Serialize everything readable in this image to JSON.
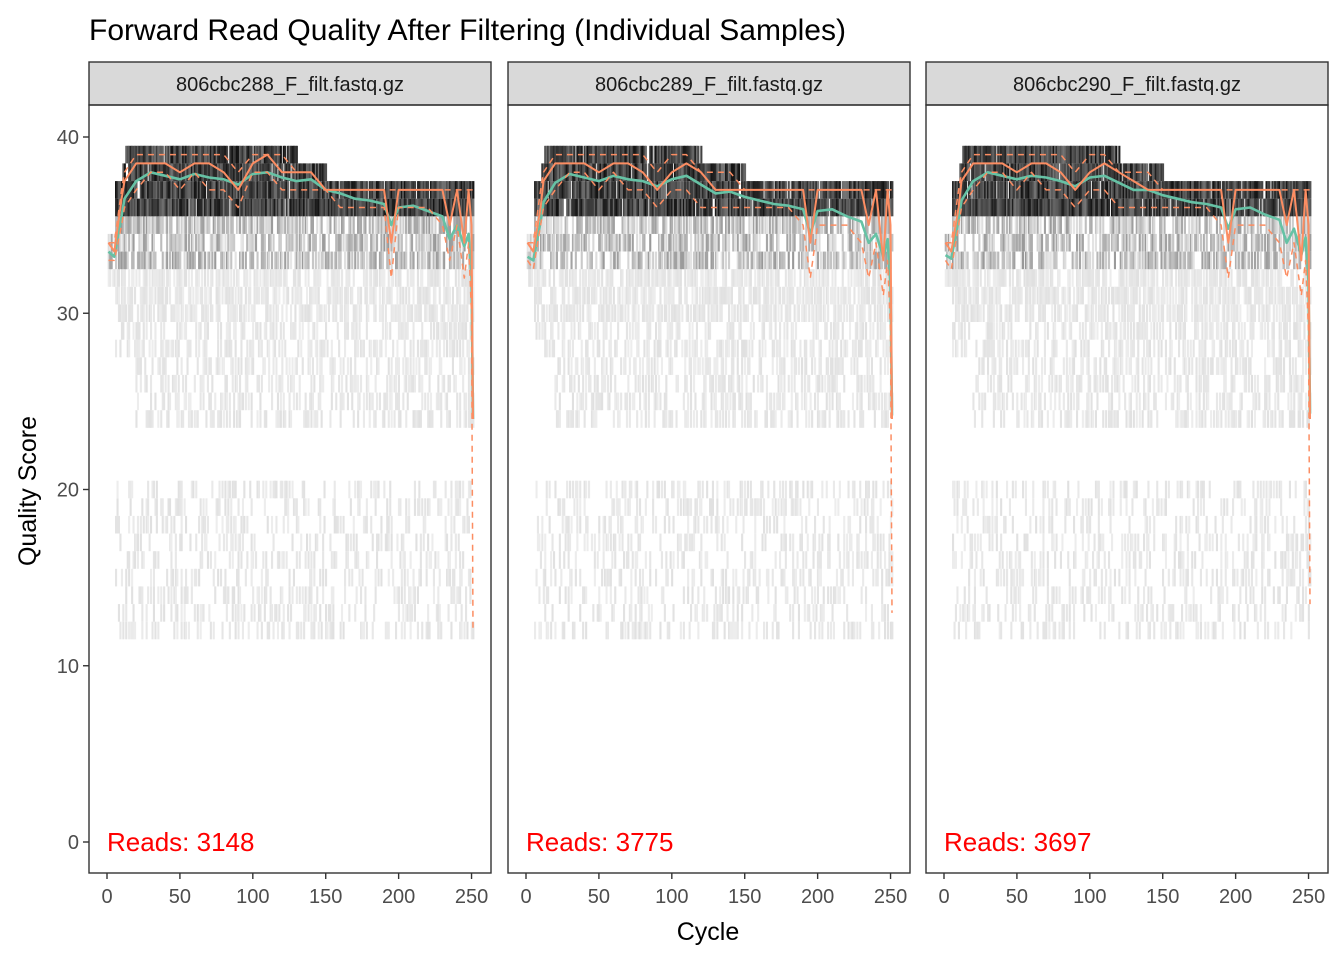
{
  "page": {
    "title": "Forward Read Quality After Filtering (Individual Samples)",
    "xlabel": "Cycle",
    "ylabel": "Quality Score"
  },
  "colors": {
    "mean_line": "#66C2A5",
    "quartile_line": "#FC8D62",
    "reads_text": "#FF0000",
    "strip_fill": "#D9D9D9",
    "heat_max": "#111111",
    "heat_min": "#F2F2F2"
  },
  "chart_data": [
    {
      "type": "heatmap",
      "panel": "806cbc288_F_filt.fastq.gz",
      "reads_label": "Reads:  3148",
      "x_range": [
        0,
        251
      ],
      "y_range": [
        0,
        40
      ],
      "x_ticks": [
        "0",
        "50",
        "100",
        "150",
        "200",
        "250"
      ],
      "y_ticks": [
        "0",
        "10",
        "20",
        "30",
        "40"
      ],
      "grid": false,
      "series": [
        {
          "role": "mean",
          "x": [
            1,
            5,
            10,
            12,
            20,
            30,
            40,
            50,
            60,
            70,
            80,
            90,
            100,
            110,
            120,
            130,
            140,
            150,
            160,
            170,
            180,
            190,
            195,
            200,
            210,
            220,
            230,
            235,
            240,
            245,
            248,
            250,
            251
          ],
          "y": [
            33.5,
            33.2,
            35.5,
            36.5,
            37.5,
            38.0,
            37.8,
            37.6,
            37.9,
            37.7,
            37.6,
            37.3,
            37.9,
            38.0,
            37.7,
            37.5,
            37.6,
            37.0,
            36.8,
            36.5,
            36.4,
            36.2,
            35.0,
            36.0,
            36.1,
            35.8,
            35.5,
            34.2,
            35.0,
            33.8,
            34.5,
            32.0,
            24.0
          ]
        },
        {
          "role": "median",
          "x": [
            1,
            5,
            10,
            12,
            20,
            30,
            40,
            50,
            60,
            70,
            80,
            90,
            100,
            110,
            120,
            130,
            140,
            150,
            160,
            170,
            180,
            190,
            195,
            200,
            210,
            220,
            230,
            235,
            240,
            245,
            248,
            250,
            251
          ],
          "y": [
            34.0,
            33.5,
            36.5,
            37.5,
            38.5,
            38.5,
            38.5,
            38.0,
            38.5,
            38.5,
            38.0,
            37.0,
            38.5,
            39.0,
            38.0,
            38.0,
            38.0,
            37.0,
            37.0,
            37.0,
            37.0,
            37.0,
            34.0,
            37.0,
            37.0,
            37.0,
            37.0,
            35.0,
            37.0,
            34.0,
            37.0,
            35.0,
            24.0
          ]
        },
        {
          "role": "q25",
          "x": [
            1,
            5,
            10,
            12,
            20,
            30,
            40,
            50,
            60,
            70,
            80,
            90,
            100,
            110,
            120,
            130,
            140,
            150,
            160,
            170,
            180,
            190,
            195,
            200,
            210,
            220,
            230,
            235,
            240,
            245,
            248,
            250,
            251
          ],
          "y": [
            33.0,
            33.0,
            35.0,
            36.0,
            37.0,
            38.0,
            38.0,
            37.0,
            38.0,
            37.0,
            37.0,
            36.0,
            38.0,
            38.0,
            37.0,
            37.0,
            37.0,
            37.0,
            36.0,
            36.0,
            36.0,
            36.0,
            32.0,
            36.0,
            36.0,
            36.0,
            35.0,
            33.0,
            35.0,
            32.0,
            34.0,
            30.0,
            12.0
          ]
        },
        {
          "role": "q75",
          "x": [
            1,
            5,
            10,
            12,
            20,
            30,
            40,
            50,
            60,
            70,
            80,
            90,
            100,
            110,
            120,
            130,
            140,
            150,
            160,
            170,
            180,
            190,
            195,
            200,
            210,
            220,
            230,
            235,
            240,
            245,
            248,
            250,
            251
          ],
          "y": [
            34.0,
            34.0,
            37.0,
            38.0,
            39.0,
            39.0,
            39.0,
            39.0,
            39.0,
            39.0,
            39.0,
            38.0,
            39.0,
            39.0,
            39.0,
            38.0,
            38.0,
            37.0,
            37.0,
            37.0,
            37.0,
            37.0,
            37.0,
            37.0,
            37.0,
            37.0,
            37.0,
            37.0,
            37.0,
            37.0,
            37.0,
            37.0,
            37.0
          ]
        }
      ]
    },
    {
      "type": "heatmap",
      "panel": "806cbc289_F_filt.fastq.gz",
      "reads_label": "Reads:  3775",
      "x_range": [
        0,
        251
      ],
      "y_range": [
        0,
        40
      ],
      "x_ticks": [
        "0",
        "50",
        "100",
        "150",
        "200",
        "250"
      ],
      "y_ticks": [
        "0",
        "10",
        "20",
        "30",
        "40"
      ],
      "grid": false,
      "series": [
        {
          "role": "mean",
          "x": [
            1,
            5,
            10,
            12,
            20,
            30,
            40,
            50,
            60,
            70,
            80,
            90,
            100,
            110,
            120,
            130,
            140,
            150,
            160,
            170,
            180,
            190,
            195,
            200,
            210,
            220,
            230,
            235,
            240,
            245,
            248,
            250,
            251
          ],
          "y": [
            33.2,
            33.0,
            35.2,
            36.3,
            37.4,
            37.9,
            37.7,
            37.5,
            37.8,
            37.6,
            37.5,
            37.2,
            37.6,
            37.8,
            37.3,
            36.8,
            36.9,
            36.6,
            36.4,
            36.2,
            36.1,
            35.9,
            34.5,
            35.8,
            35.9,
            35.5,
            35.2,
            34.0,
            34.5,
            33.2,
            34.2,
            31.5,
            24.2
          ]
        },
        {
          "role": "median",
          "x": [
            1,
            5,
            10,
            12,
            20,
            30,
            40,
            50,
            60,
            70,
            80,
            90,
            100,
            110,
            120,
            130,
            140,
            150,
            160,
            170,
            180,
            190,
            195,
            200,
            210,
            220,
            230,
            235,
            240,
            245,
            248,
            250,
            251
          ],
          "y": [
            34.0,
            33.5,
            36.0,
            37.5,
            38.5,
            38.5,
            38.5,
            38.0,
            38.5,
            38.5,
            38.0,
            37.0,
            38.0,
            38.5,
            38.0,
            37.0,
            37.0,
            37.0,
            37.0,
            37.0,
            37.0,
            37.0,
            34.0,
            37.0,
            37.0,
            37.0,
            37.0,
            35.0,
            37.0,
            33.0,
            37.0,
            35.0,
            24.0
          ]
        },
        {
          "role": "q25",
          "x": [
            1,
            5,
            10,
            12,
            20,
            30,
            40,
            50,
            60,
            70,
            80,
            90,
            100,
            110,
            120,
            130,
            140,
            150,
            160,
            170,
            180,
            190,
            195,
            200,
            210,
            220,
            230,
            235,
            240,
            245,
            248,
            250,
            251
          ],
          "y": [
            33.0,
            32.5,
            35.0,
            36.0,
            37.0,
            38.0,
            38.0,
            37.0,
            38.0,
            37.0,
            37.0,
            36.0,
            37.0,
            37.0,
            36.0,
            36.0,
            36.0,
            36.0,
            36.0,
            36.0,
            36.0,
            35.0,
            32.0,
            35.0,
            35.0,
            35.0,
            34.0,
            32.0,
            34.0,
            31.0,
            33.0,
            29.0,
            13.0
          ]
        },
        {
          "role": "q75",
          "x": [
            1,
            5,
            10,
            12,
            20,
            30,
            40,
            50,
            60,
            70,
            80,
            90,
            100,
            110,
            120,
            130,
            140,
            150,
            160,
            170,
            180,
            190,
            195,
            200,
            210,
            220,
            230,
            235,
            240,
            245,
            248,
            250,
            251
          ],
          "y": [
            34.0,
            34.0,
            37.0,
            38.0,
            39.0,
            39.0,
            39.0,
            39.0,
            39.0,
            39.0,
            39.0,
            38.0,
            39.0,
            39.0,
            38.0,
            38.0,
            38.0,
            37.0,
            37.0,
            37.0,
            37.0,
            37.0,
            37.0,
            37.0,
            37.0,
            37.0,
            37.0,
            37.0,
            37.0,
            37.0,
            37.0,
            37.0,
            37.0
          ]
        }
      ]
    },
    {
      "type": "heatmap",
      "panel": "806cbc290_F_filt.fastq.gz",
      "reads_label": "Reads:  3697",
      "x_range": [
        0,
        251
      ],
      "y_range": [
        0,
        40
      ],
      "x_ticks": [
        "0",
        "50",
        "100",
        "150",
        "200",
        "250"
      ],
      "y_ticks": [
        "0",
        "10",
        "20",
        "30",
        "40"
      ],
      "grid": false,
      "series": [
        {
          "role": "mean",
          "x": [
            1,
            5,
            10,
            12,
            20,
            30,
            40,
            50,
            60,
            70,
            80,
            90,
            100,
            110,
            120,
            130,
            140,
            150,
            160,
            170,
            180,
            190,
            195,
            200,
            210,
            220,
            230,
            235,
            240,
            245,
            248,
            250,
            251
          ],
          "y": [
            33.3,
            33.1,
            35.3,
            36.4,
            37.5,
            38.0,
            37.8,
            37.6,
            37.8,
            37.7,
            37.5,
            37.2,
            37.7,
            37.8,
            37.4,
            37.0,
            37.0,
            36.7,
            36.5,
            36.3,
            36.2,
            36.0,
            34.8,
            35.9,
            36.0,
            35.6,
            35.3,
            34.0,
            34.8,
            33.3,
            34.3,
            31.8,
            24.3
          ]
        },
        {
          "role": "median",
          "x": [
            1,
            5,
            10,
            12,
            20,
            30,
            40,
            50,
            60,
            70,
            80,
            90,
            100,
            110,
            120,
            130,
            140,
            150,
            160,
            170,
            180,
            190,
            195,
            200,
            210,
            220,
            230,
            235,
            240,
            245,
            248,
            250,
            251
          ],
          "y": [
            34.0,
            33.5,
            36.0,
            37.5,
            38.5,
            38.5,
            38.5,
            38.0,
            38.5,
            38.5,
            38.0,
            37.0,
            38.0,
            38.5,
            38.0,
            37.5,
            37.0,
            37.0,
            37.0,
            37.0,
            37.0,
            37.0,
            34.0,
            37.0,
            37.0,
            37.0,
            37.0,
            35.0,
            37.0,
            33.0,
            37.0,
            35.0,
            24.0
          ]
        },
        {
          "role": "q25",
          "x": [
            1,
            5,
            10,
            12,
            20,
            30,
            40,
            50,
            60,
            70,
            80,
            90,
            100,
            110,
            120,
            130,
            140,
            150,
            160,
            170,
            180,
            190,
            195,
            200,
            210,
            220,
            230,
            235,
            240,
            245,
            248,
            250,
            251
          ],
          "y": [
            33.0,
            32.5,
            35.0,
            36.0,
            37.0,
            38.0,
            38.0,
            37.0,
            38.0,
            37.0,
            37.0,
            36.0,
            37.0,
            37.0,
            36.0,
            36.0,
            36.0,
            36.0,
            36.0,
            36.0,
            36.0,
            35.0,
            32.0,
            35.0,
            35.0,
            35.0,
            34.0,
            32.0,
            34.0,
            31.0,
            33.0,
            29.0,
            13.5
          ]
        },
        {
          "role": "q75",
          "x": [
            1,
            5,
            10,
            12,
            20,
            30,
            40,
            50,
            60,
            70,
            80,
            90,
            100,
            110,
            120,
            130,
            140,
            150,
            160,
            170,
            180,
            190,
            195,
            200,
            210,
            220,
            230,
            235,
            240,
            245,
            248,
            250,
            251
          ],
          "y": [
            34.0,
            34.0,
            37.0,
            38.0,
            39.0,
            39.0,
            39.0,
            39.0,
            39.0,
            39.0,
            39.0,
            38.0,
            39.0,
            39.0,
            38.0,
            38.0,
            38.0,
            37.0,
            37.0,
            37.0,
            37.0,
            37.0,
            37.0,
            37.0,
            37.0,
            37.0,
            37.0,
            37.0,
            37.0,
            37.0,
            37.0,
            37.0,
            37.0
          ]
        }
      ]
    }
  ]
}
